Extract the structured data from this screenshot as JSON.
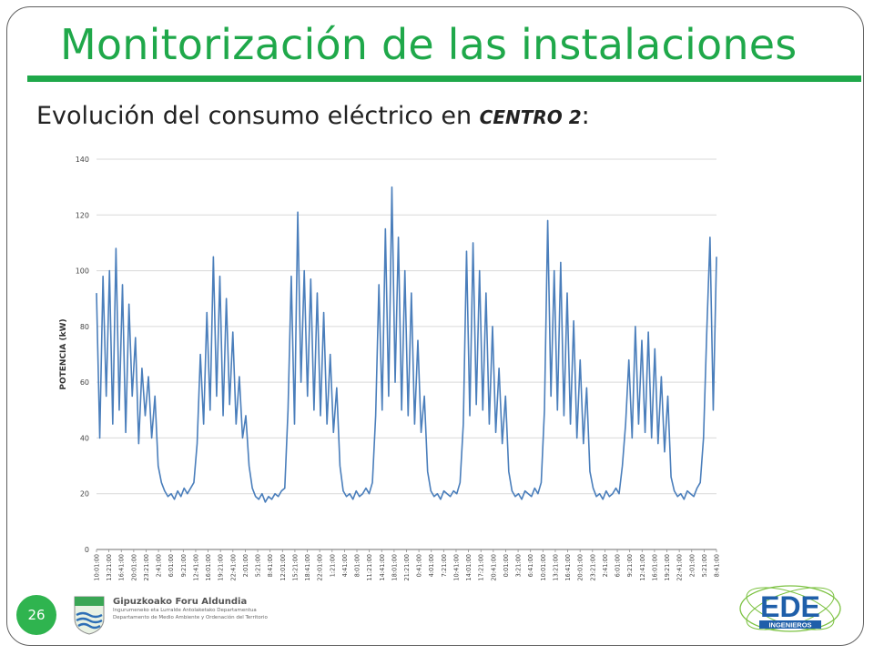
{
  "slide": {
    "title": "Monitorización de las instalaciones",
    "subtitle_prefix": "Evolución del consumo eléctrico en ",
    "subtitle_emphasis": "CENTRO 2",
    "subtitle_suffix": ":",
    "page_number": "26"
  },
  "footer": {
    "left_logo_name": "Gipuzkoako Foru Aldundia",
    "left_logo_line1": "Ingurumeneko eta Lurralde Antolaketako Departamentua",
    "left_logo_line2": "Departamento de Medio Ambiente y Ordenación del Territorio",
    "right_logo_text": "EDE",
    "right_logo_subtext": "INGENIEROS"
  },
  "colors": {
    "title_green": "#1fa84a",
    "badge_green": "#2fb44f",
    "series_blue": "#4a7ebb",
    "grid": "#d9d9d9"
  },
  "chart_data": {
    "type": "line",
    "title": "",
    "xlabel": "",
    "ylabel": "POTENCIA (kW)",
    "ylim": [
      0,
      140
    ],
    "yticks": [
      0,
      20,
      40,
      60,
      80,
      100,
      120,
      140
    ],
    "grid": "horizontal",
    "legend": "none",
    "x_tick_labels": [
      "10:01:00",
      "13:21:00",
      "16:41:00",
      "20:01:00",
      "23:21:00",
      "2:41:00",
      "6:01:00",
      "9:21:00",
      "12:41:00",
      "16:01:00",
      "19:21:00",
      "22:41:00",
      "2:01:00",
      "5:21:00",
      "8:41:00",
      "12:01:00",
      "15:21:00",
      "18:41:00",
      "22:01:00",
      "1:21:00",
      "4:41:00",
      "8:01:00",
      "11:21:00",
      "14:41:00",
      "18:01:00",
      "21:21:00",
      "0:41:00",
      "4:01:00",
      "7:21:00",
      "10:41:00",
      "14:01:00",
      "17:21:00",
      "20:41:00",
      "0:01:00",
      "3:21:00",
      "6:41:00",
      "10:01:00",
      "13:21:00",
      "16:41:00",
      "20:01:00",
      "23:21:00",
      "2:41:00",
      "6:01:00",
      "9:21:00",
      "12:41:00",
      "16:01:00",
      "19:21:00",
      "22:41:00",
      "2:01:00",
      "5:21:00",
      "8:41:00"
    ],
    "series": [
      {
        "name": "",
        "approx_profile_note": "",
        "points": [
          [
            0,
            92
          ],
          [
            0.4,
            40
          ],
          [
            0.8,
            98
          ],
          [
            1.2,
            55
          ],
          [
            1.6,
            100
          ],
          [
            2,
            45
          ],
          [
            2.4,
            108
          ],
          [
            2.8,
            50
          ],
          [
            3.2,
            95
          ],
          [
            3.6,
            42
          ],
          [
            4,
            88
          ],
          [
            4.4,
            55
          ],
          [
            4.8,
            76
          ],
          [
            5.2,
            38
          ],
          [
            5.6,
            65
          ],
          [
            6,
            48
          ],
          [
            6.4,
            62
          ],
          [
            6.8,
            40
          ],
          [
            7.2,
            55
          ],
          [
            7.6,
            30
          ],
          [
            8,
            24
          ],
          [
            8.4,
            21
          ],
          [
            8.8,
            19
          ],
          [
            9.2,
            20
          ],
          [
            9.6,
            18
          ],
          [
            10,
            21
          ],
          [
            10.4,
            19
          ],
          [
            10.8,
            22
          ],
          [
            11.2,
            20
          ],
          [
            11.6,
            22
          ],
          [
            12,
            24
          ],
          [
            12.4,
            38
          ],
          [
            12.8,
            70
          ],
          [
            13.2,
            45
          ],
          [
            13.6,
            85
          ],
          [
            14,
            50
          ],
          [
            14.4,
            105
          ],
          [
            14.8,
            55
          ],
          [
            15.2,
            98
          ],
          [
            15.6,
            48
          ],
          [
            16,
            90
          ],
          [
            16.4,
            52
          ],
          [
            16.8,
            78
          ],
          [
            17.2,
            45
          ],
          [
            17.6,
            62
          ],
          [
            18,
            40
          ],
          [
            18.4,
            48
          ],
          [
            18.8,
            30
          ],
          [
            19.2,
            22
          ],
          [
            19.6,
            19
          ],
          [
            20,
            18
          ],
          [
            20.4,
            20
          ],
          [
            20.8,
            17
          ],
          [
            21.2,
            19
          ],
          [
            21.6,
            18
          ],
          [
            22,
            20
          ],
          [
            22.4,
            19
          ],
          [
            22.8,
            21
          ],
          [
            23.2,
            22
          ],
          [
            23.6,
            50
          ],
          [
            24,
            98
          ],
          [
            24.4,
            45
          ],
          [
            24.8,
            121
          ],
          [
            25.2,
            60
          ],
          [
            25.6,
            100
          ],
          [
            26,
            55
          ],
          [
            26.4,
            97
          ],
          [
            26.8,
            50
          ],
          [
            27.2,
            92
          ],
          [
            27.6,
            48
          ],
          [
            28,
            85
          ],
          [
            28.4,
            45
          ],
          [
            28.8,
            70
          ],
          [
            29.2,
            42
          ],
          [
            29.6,
            58
          ],
          [
            30,
            30
          ],
          [
            30.4,
            21
          ],
          [
            30.8,
            19
          ],
          [
            31.2,
            20
          ],
          [
            31.6,
            18
          ],
          [
            32,
            21
          ],
          [
            32.4,
            19
          ],
          [
            32.8,
            20
          ],
          [
            33.2,
            22
          ],
          [
            33.6,
            20
          ],
          [
            34,
            24
          ],
          [
            34.4,
            48
          ],
          [
            34.8,
            95
          ],
          [
            35.2,
            50
          ],
          [
            35.6,
            115
          ],
          [
            36,
            55
          ],
          [
            36.4,
            130
          ],
          [
            36.8,
            60
          ],
          [
            37.2,
            112
          ],
          [
            37.6,
            50
          ],
          [
            38,
            100
          ],
          [
            38.4,
            48
          ],
          [
            38.8,
            92
          ],
          [
            39.2,
            45
          ],
          [
            39.6,
            75
          ],
          [
            40,
            42
          ],
          [
            40.4,
            55
          ],
          [
            40.8,
            28
          ],
          [
            41.2,
            21
          ],
          [
            41.6,
            19
          ],
          [
            42,
            20
          ],
          [
            42.4,
            18
          ],
          [
            42.8,
            21
          ],
          [
            43.2,
            20
          ],
          [
            43.6,
            19
          ],
          [
            44,
            21
          ],
          [
            44.4,
            20
          ],
          [
            44.8,
            24
          ],
          [
            45.2,
            45
          ],
          [
            45.6,
            107
          ],
          [
            46,
            48
          ],
          [
            46.4,
            110
          ],
          [
            46.8,
            52
          ],
          [
            47.2,
            100
          ],
          [
            47.6,
            50
          ],
          [
            48,
            92
          ],
          [
            48.4,
            45
          ],
          [
            48.8,
            80
          ],
          [
            49.2,
            42
          ],
          [
            49.6,
            65
          ],
          [
            50,
            38
          ],
          [
            50.4,
            55
          ],
          [
            50.8,
            28
          ],
          [
            51.2,
            21
          ],
          [
            51.6,
            19
          ],
          [
            52,
            20
          ],
          [
            52.4,
            18
          ],
          [
            52.8,
            21
          ],
          [
            53.2,
            20
          ],
          [
            53.6,
            19
          ],
          [
            54,
            22
          ],
          [
            54.4,
            20
          ],
          [
            54.8,
            24
          ],
          [
            55.2,
            50
          ],
          [
            55.6,
            118
          ],
          [
            56,
            55
          ],
          [
            56.4,
            100
          ],
          [
            56.8,
            50
          ],
          [
            57.2,
            103
          ],
          [
            57.6,
            48
          ],
          [
            58,
            92
          ],
          [
            58.4,
            45
          ],
          [
            58.8,
            82
          ],
          [
            59.2,
            40
          ],
          [
            59.6,
            68
          ],
          [
            60,
            38
          ],
          [
            60.4,
            58
          ],
          [
            60.8,
            28
          ],
          [
            61.2,
            22
          ],
          [
            61.6,
            19
          ],
          [
            62,
            20
          ],
          [
            62.4,
            18
          ],
          [
            62.8,
            21
          ],
          [
            63.2,
            19
          ],
          [
            63.6,
            20
          ],
          [
            64,
            22
          ],
          [
            64.4,
            20
          ],
          [
            64.8,
            30
          ],
          [
            65.2,
            45
          ],
          [
            65.6,
            68
          ],
          [
            66,
            40
          ],
          [
            66.4,
            80
          ],
          [
            66.8,
            45
          ],
          [
            67.2,
            75
          ],
          [
            67.6,
            42
          ],
          [
            68,
            78
          ],
          [
            68.4,
            40
          ],
          [
            68.8,
            72
          ],
          [
            69.2,
            38
          ],
          [
            69.6,
            62
          ],
          [
            70,
            35
          ],
          [
            70.4,
            55
          ],
          [
            70.8,
            26
          ],
          [
            71.2,
            21
          ],
          [
            71.6,
            19
          ],
          [
            72,
            20
          ],
          [
            72.4,
            18
          ],
          [
            72.8,
            21
          ],
          [
            73.2,
            20
          ],
          [
            73.6,
            19
          ],
          [
            74,
            22
          ],
          [
            74.4,
            24
          ],
          [
            74.8,
            40
          ],
          [
            75.2,
            78
          ],
          [
            75.6,
            112
          ],
          [
            76,
            50
          ],
          [
            76.4,
            105
          ]
        ]
      }
    ]
  }
}
